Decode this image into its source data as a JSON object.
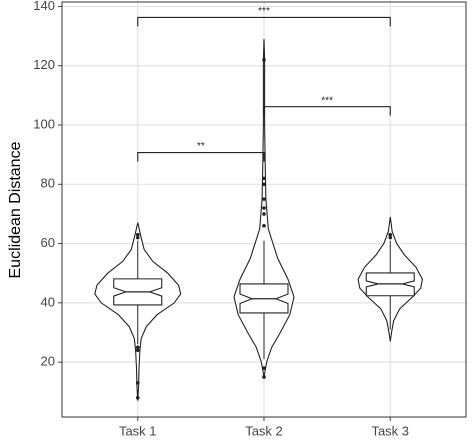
{
  "chart_data": {
    "type": "violin",
    "ylabel": "Euclidean Distance",
    "categories": [
      "Task 1",
      "Task 2",
      "Task 3"
    ],
    "ylim": [
      1.5,
      141.5
    ],
    "yticks": [
      20,
      40,
      60,
      80,
      100,
      120,
      140
    ],
    "grid": true,
    "violins": [
      {
        "q1": 39.3,
        "median": 43.7,
        "q3": 48.1,
        "notch_low": 42.3,
        "notch_high": 45.1,
        "whisker_low": 26,
        "whisker_high": 61,
        "outliers": [
          62,
          63,
          25,
          24,
          13,
          8
        ],
        "density": {
          "y": [
            67,
            62,
            58,
            54,
            50,
            46,
            43,
            40,
            36,
            32,
            28,
            24,
            18,
            12,
            7
          ],
          "width": [
            0,
            0.08,
            0.15,
            0.35,
            0.7,
            0.95,
            1.0,
            0.85,
            0.45,
            0.2,
            0.08,
            0.05,
            0.03,
            0.02,
            0
          ]
        }
      },
      {
        "q1": 36.6,
        "median": 41.4,
        "q3": 46.4,
        "notch_low": 39.8,
        "notch_high": 43.0,
        "whisker_low": 21,
        "whisker_high": 61,
        "outliers": [
          66,
          70,
          72,
          75,
          80,
          82,
          122,
          18,
          15
        ],
        "density": {
          "y": [
            129,
            122,
            100,
            85,
            75,
            65,
            55,
            48,
            42,
            36,
            30,
            25,
            20,
            15
          ],
          "width": [
            0,
            0.015,
            0.015,
            0.03,
            0.045,
            0.1,
            0.32,
            0.56,
            0.7,
            0.6,
            0.38,
            0.18,
            0.06,
            0
          ]
        }
      },
      {
        "q1": 42.4,
        "median": 46.4,
        "q3": 50.1,
        "notch_low": 45.4,
        "notch_high": 47.4,
        "whisker_low": 31,
        "whisker_high": 61,
        "outliers": [
          62,
          63
        ],
        "density": {
          "y": [
            69,
            64,
            60,
            56,
            52,
            48,
            45,
            42,
            38,
            34,
            30,
            27
          ],
          "width": [
            0,
            0.045,
            0.15,
            0.34,
            0.6,
            0.75,
            0.71,
            0.52,
            0.22,
            0.08,
            0.03,
            0
          ]
        }
      }
    ],
    "annotations": [
      {
        "from": 0,
        "to": 2,
        "y": 136.3,
        "label": "***"
      },
      {
        "from": 0,
        "to": 1,
        "y": 90.7,
        "label": "**"
      },
      {
        "from": 1,
        "to": 2,
        "y": 106.2,
        "label": "***"
      }
    ]
  }
}
